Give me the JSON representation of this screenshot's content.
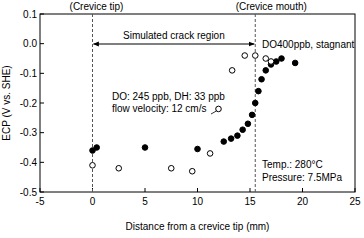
{
  "chart_data": {
    "type": "scatter",
    "x_label": "Distance from a crevice tip  (mm)",
    "y_label": "ECP (V vs. SHE)",
    "xlim": [
      -5,
      25
    ],
    "xticks": [
      -5,
      0,
      5,
      10,
      15,
      20,
      25
    ],
    "ylim": [
      -0.5,
      0.1
    ],
    "yticks": [
      -0.5,
      -0.4,
      -0.3,
      -0.2,
      -0.1,
      {
        "value": 0,
        "label": "0.0"
      },
      0.1
    ],
    "crack_region": [
      0,
      15.5
    ],
    "annotations": [
      "(Crevice tip)",
      "(Crevice mouth)",
      "Simulated crack region",
      "DO400ppb, stagnant",
      "DO: 245 ppb, DH: 33 ppb",
      "flow velocity: 12 cm/s",
      "Temp.: 280°C",
      "Pressure: 7.5MPa"
    ],
    "series": [
      {
        "color": "#000000",
        "marker": "circle",
        "x": [
          0,
          0.4,
          5,
          10,
          12.5,
          13.2,
          13.8,
          14.3,
          14.8,
          15.2,
          15.5,
          15.8,
          16.1,
          16.5,
          17,
          17.5,
          18,
          19.3
        ],
        "values": [
          -0.36,
          -0.35,
          -0.35,
          -0.355,
          -0.33,
          -0.32,
          -0.31,
          -0.29,
          -0.27,
          -0.24,
          -0.2,
          -0.16,
          -0.12,
          -0.09,
          -0.07,
          -0.06,
          -0.05,
          -0.065
        ]
      },
      {
        "color": "#000000",
        "marker": "circle_open",
        "x": [
          0,
          2.5,
          7.5,
          9.5,
          11.2,
          12,
          13.3,
          14.5,
          15.5,
          16.5,
          17
        ],
        "values": [
          -0.41,
          -0.42,
          -0.42,
          -0.43,
          -0.37,
          -0.22,
          -0.09,
          -0.04,
          -0.04,
          -0.05,
          -0.06
        ]
      }
    ]
  }
}
